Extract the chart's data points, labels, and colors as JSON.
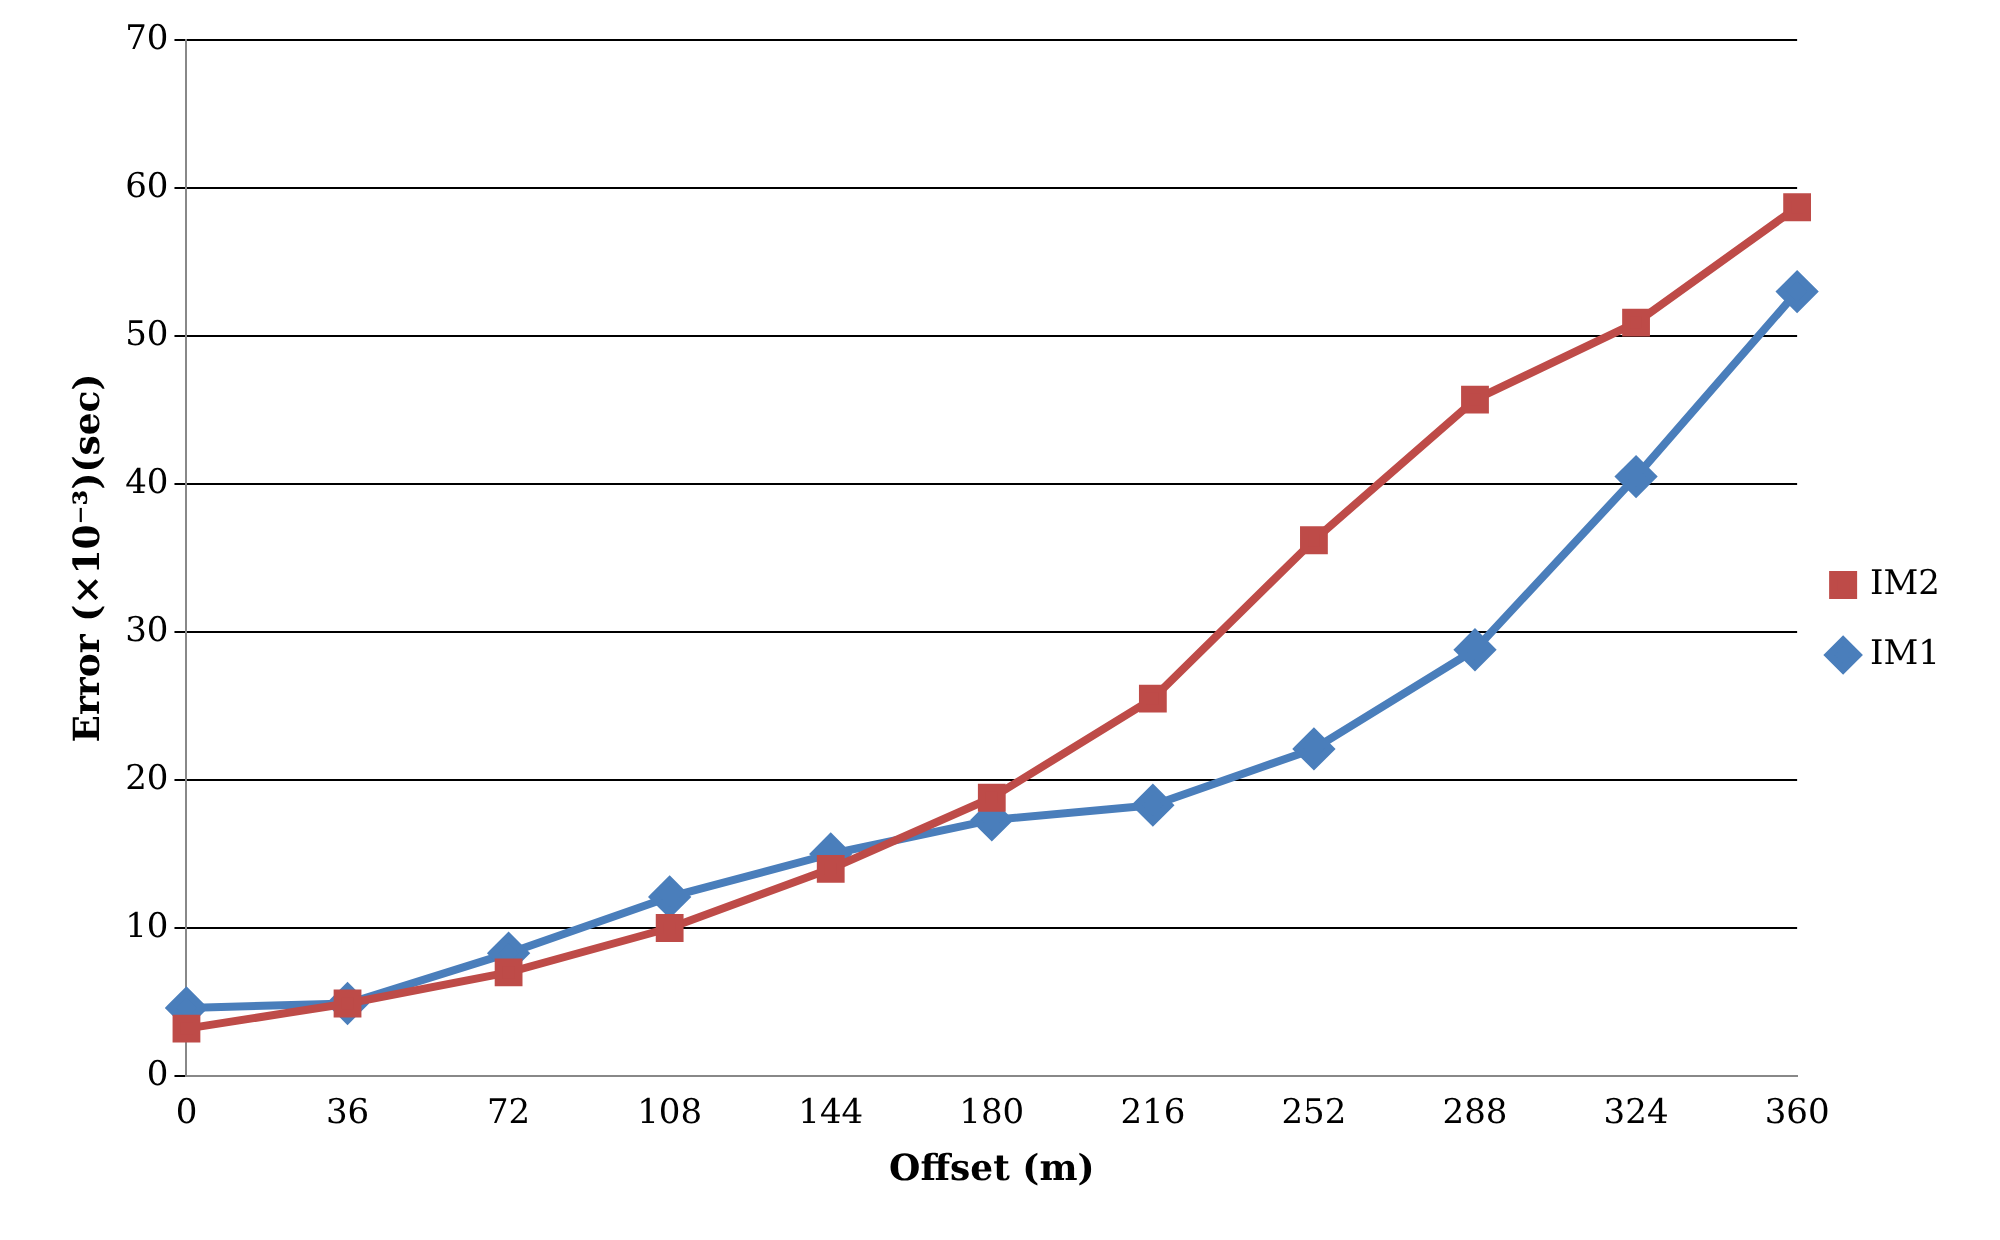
{
  "chart_data": {
    "type": "line",
    "xlabel": "Offset (m)",
    "ylabel": "Error (×10⁻³)(sec)",
    "categories": [
      "0",
      "36",
      "72",
      "108",
      "144",
      "180",
      "216",
      "252",
      "288",
      "324",
      "360"
    ],
    "series": [
      {
        "name": "IM1",
        "color": "#4a7ebb",
        "marker": "diamond",
        "values": [
          4.6,
          4.9,
          8.3,
          12.1,
          15.0,
          17.3,
          18.3,
          22.1,
          28.8,
          40.5,
          53.0
        ]
      },
      {
        "name": "IM2",
        "color": "#be4b48",
        "marker": "square",
        "values": [
          3.2,
          4.9,
          7.0,
          10.0,
          14.0,
          18.8,
          25.5,
          36.2,
          45.7,
          50.9,
          58.7
        ]
      }
    ],
    "ylim": [
      0,
      70
    ],
    "yticks": [
      0,
      10,
      20,
      30,
      40,
      50,
      60,
      70
    ],
    "grid": "y",
    "legend": "right",
    "line_style": "solid"
  }
}
